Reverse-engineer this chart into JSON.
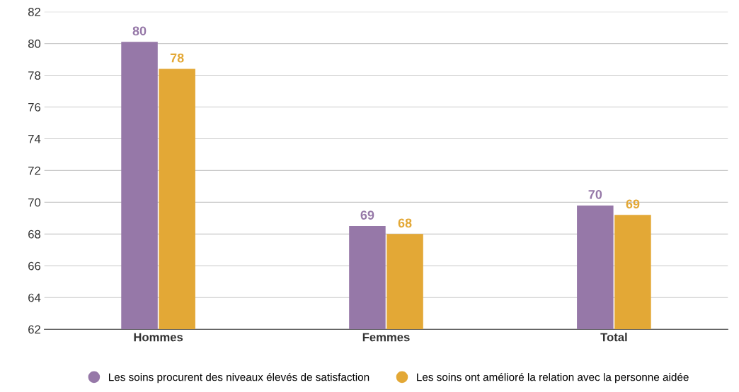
{
  "chart_data": {
    "type": "bar",
    "categories": [
      "Hommes",
      "Femmes",
      "Total"
    ],
    "series": [
      {
        "name": "Les soins procurent des niveaux élevés de satisfaction",
        "color": "#9678a8",
        "values": [
          80.1,
          68.5,
          69.8
        ],
        "value_labels": [
          "80",
          "69",
          "70"
        ]
      },
      {
        "name": "Les soins ont amélioré la relation avec la personne aidée",
        "color": "#e3a836",
        "values": [
          78.4,
          68.0,
          69.2
        ],
        "value_labels": [
          "78",
          "68",
          "69"
        ]
      }
    ],
    "ylim": [
      62,
      82
    ],
    "yticks": [
      62,
      64,
      66,
      68,
      70,
      72,
      74,
      76,
      78,
      80,
      82
    ],
    "grid": "y",
    "legend": "bottom"
  }
}
